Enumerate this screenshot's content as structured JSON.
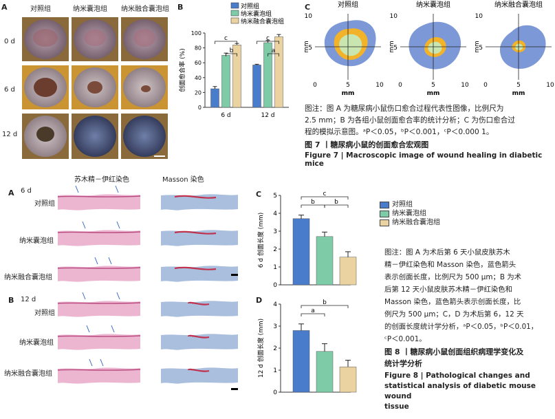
{
  "fig7": {
    "panel_a": {
      "label": "A",
      "col_headers": [
        "对照组",
        "纳米囊泡组",
        "纳米融合囊泡组"
      ],
      "row_labels": [
        "0 d",
        "6 d",
        "12 d"
      ]
    },
    "panel_b": {
      "label": "B"
    },
    "panel_c": {
      "label": "C",
      "titles": [
        "对照组",
        "纳米囊泡组",
        "纳米融合囊泡组"
      ],
      "ylabel": "mm",
      "xlabel": "mm",
      "ticks": [
        "0",
        "5",
        "10"
      ]
    },
    "note_lines": [
      "图注：图 A 为糖尿病小鼠伤口愈合过程代表性图像，比例尺为",
      "2.5 mm；B 为各组小鼠创面愈合率的统计分析；C 为伤口愈合过",
      "程的模拟示意图。ᵃP＜0.05，ᵇP＜0.001，ᶜP＜0.000 1。"
    ],
    "title_cn": "图 7 丨糖尿病小鼠的创面愈合宏观图",
    "title_en": "Figure 7  |  Macroscopic image of wound healing in diabetic mice"
  },
  "fig8": {
    "col_headers": [
      "苏木精－伊红染色",
      "Masson 染色"
    ],
    "panel_a": {
      "label": "A",
      "day": "6 d",
      "rows": [
        "对照组",
        "纳米囊泡组",
        "纳米融合囊泡组"
      ]
    },
    "panel_b": {
      "label": "B",
      "day": "12 d",
      "rows": [
        "对照组",
        "纳米囊泡组",
        "纳米融合囊泡组"
      ]
    },
    "panel_c": {
      "label": "C"
    },
    "panel_d": {
      "label": "D"
    },
    "legend": [
      "对照组",
      "纳米囊泡组",
      "纳米融合囊泡组"
    ],
    "note_lines": [
      "图注：图 A 为术后第 6 天小鼠皮肤苏木",
      "精－伊红染色和 Masson 染色，蓝色箭头",
      "表示创面长度，比例尺为 500 μm；B 为术",
      "后第 12 天小鼠皮肤苏木精－伊红染色和",
      "Masson 染色，蓝色箭头表示创面长度，比",
      "例尺为 500 μm；C，D 为术后第 6，12 天",
      "的创面长度统计学分析，ᵃP＜0.05，ᵇP＜0.01，",
      "ᶜP＜0.001。"
    ],
    "title_cn_lines": [
      "图 8 丨糖尿病小鼠创面组织病理学变化及",
      "统计学分析"
    ],
    "title_en_lines": [
      "Figure 8  |  Pathological changes and",
      "statistical analysis of diabetic mouse wound",
      "tissue"
    ]
  },
  "colors": {
    "control": "#4a7ccc",
    "nano": "#7ecba8",
    "fused": "#ead3a0",
    "wound_blue": "#7d98d6",
    "wound_orange": "#f2b22a",
    "wound_green": "#c9e6b0",
    "he_pink": "#e9a9c9",
    "masson_blue": "#9bb4d8"
  },
  "chart_data": [
    {
      "type": "bar",
      "title": "",
      "xlabel": "",
      "ylabel": "创面愈合率 (%)",
      "categories": [
        "6 d",
        "12 d"
      ],
      "series": [
        {
          "name": "对照组",
          "values": [
            25,
            57
          ],
          "errors": [
            3,
            1
          ]
        },
        {
          "name": "纳米囊泡组",
          "values": [
            70,
            87
          ],
          "errors": [
            3,
            3
          ]
        },
        {
          "name": "纳米融合囊泡组",
          "values": [
            84,
            95
          ],
          "errors": [
            2,
            3
          ]
        }
      ],
      "ylim": [
        0,
        100
      ],
      "yticks": [
        0,
        20,
        40,
        60,
        80,
        100
      ],
      "legend": {
        "placement": "top",
        "entries": [
          "对照组",
          "纳米囊泡组",
          "纳米融合囊泡组"
        ]
      },
      "significance": [
        {
          "group": "6 d",
          "from": 0,
          "to": 2,
          "label": "c"
        },
        {
          "group": "6 d",
          "from": 1,
          "to": 2,
          "label": "b"
        },
        {
          "group": "12 d",
          "from": 0,
          "to": 2,
          "label": "c"
        },
        {
          "group": "12 d",
          "from": 1,
          "to": 2,
          "label": "a"
        }
      ]
    },
    {
      "type": "bar",
      "title": "",
      "xlabel": "",
      "ylabel": "6 d 创面长度 (mm)",
      "categories": [
        "对照组",
        "纳米囊泡组",
        "纳米融合囊泡组"
      ],
      "values": [
        3.7,
        2.7,
        1.55
      ],
      "errors": [
        0.2,
        0.25,
        0.3
      ],
      "ylim": [
        0,
        5
      ],
      "yticks": [
        0,
        1,
        2,
        3,
        4,
        5
      ],
      "significance": [
        {
          "from": 0,
          "to": 2,
          "label": "c"
        },
        {
          "from": 0,
          "to": 1,
          "label": "b"
        },
        {
          "from": 1,
          "to": 2,
          "label": "b"
        }
      ]
    },
    {
      "type": "bar",
      "title": "",
      "xlabel": "",
      "ylabel": "12 d 创面长度 (mm)",
      "categories": [
        "对照组",
        "纳米囊泡组",
        "纳米融合囊泡组"
      ],
      "values": [
        2.8,
        1.85,
        1.15
      ],
      "errors": [
        0.3,
        0.35,
        0.3
      ],
      "ylim": [
        0,
        4
      ],
      "yticks": [
        0,
        1,
        2,
        3,
        4
      ],
      "significance": [
        {
          "from": 0,
          "to": 2,
          "label": "b"
        },
        {
          "from": 0,
          "to": 1,
          "label": "a"
        }
      ]
    }
  ]
}
